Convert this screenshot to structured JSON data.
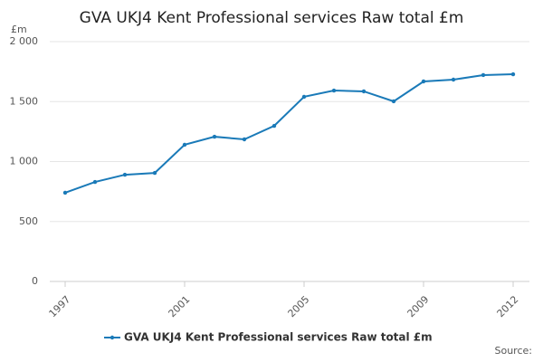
{
  "chart_data": {
    "type": "line",
    "title": "GVA UKJ4 Kent Professional services Raw total £m",
    "y_label": "£m",
    "source": "Source:",
    "x": [
      1997,
      1998,
      1999,
      2000,
      2001,
      2002,
      2003,
      2004,
      2005,
      2006,
      2007,
      2008,
      2009,
      2010,
      2011,
      2012
    ],
    "series": [
      {
        "name": "GVA UKJ4 Kent Professional services Raw total £m",
        "color": "#1a7ab8",
        "values": [
          740,
          830,
          890,
          905,
          1140,
          1207,
          1185,
          1298,
          1540,
          1592,
          1585,
          1502,
          1668,
          1683,
          1721,
          1728
        ]
      }
    ],
    "xlim": [
      1997,
      2012
    ],
    "xticks": [
      1997,
      2001,
      2005,
      2009,
      2012
    ],
    "ylim": [
      0,
      2000
    ],
    "yticks": [
      0,
      500,
      {
        "value": 1000,
        "label": "1 000"
      },
      {
        "value": 1500,
        "label": "1 500"
      },
      {
        "value": 2000,
        "label": "2 000"
      }
    ],
    "grid": true
  }
}
